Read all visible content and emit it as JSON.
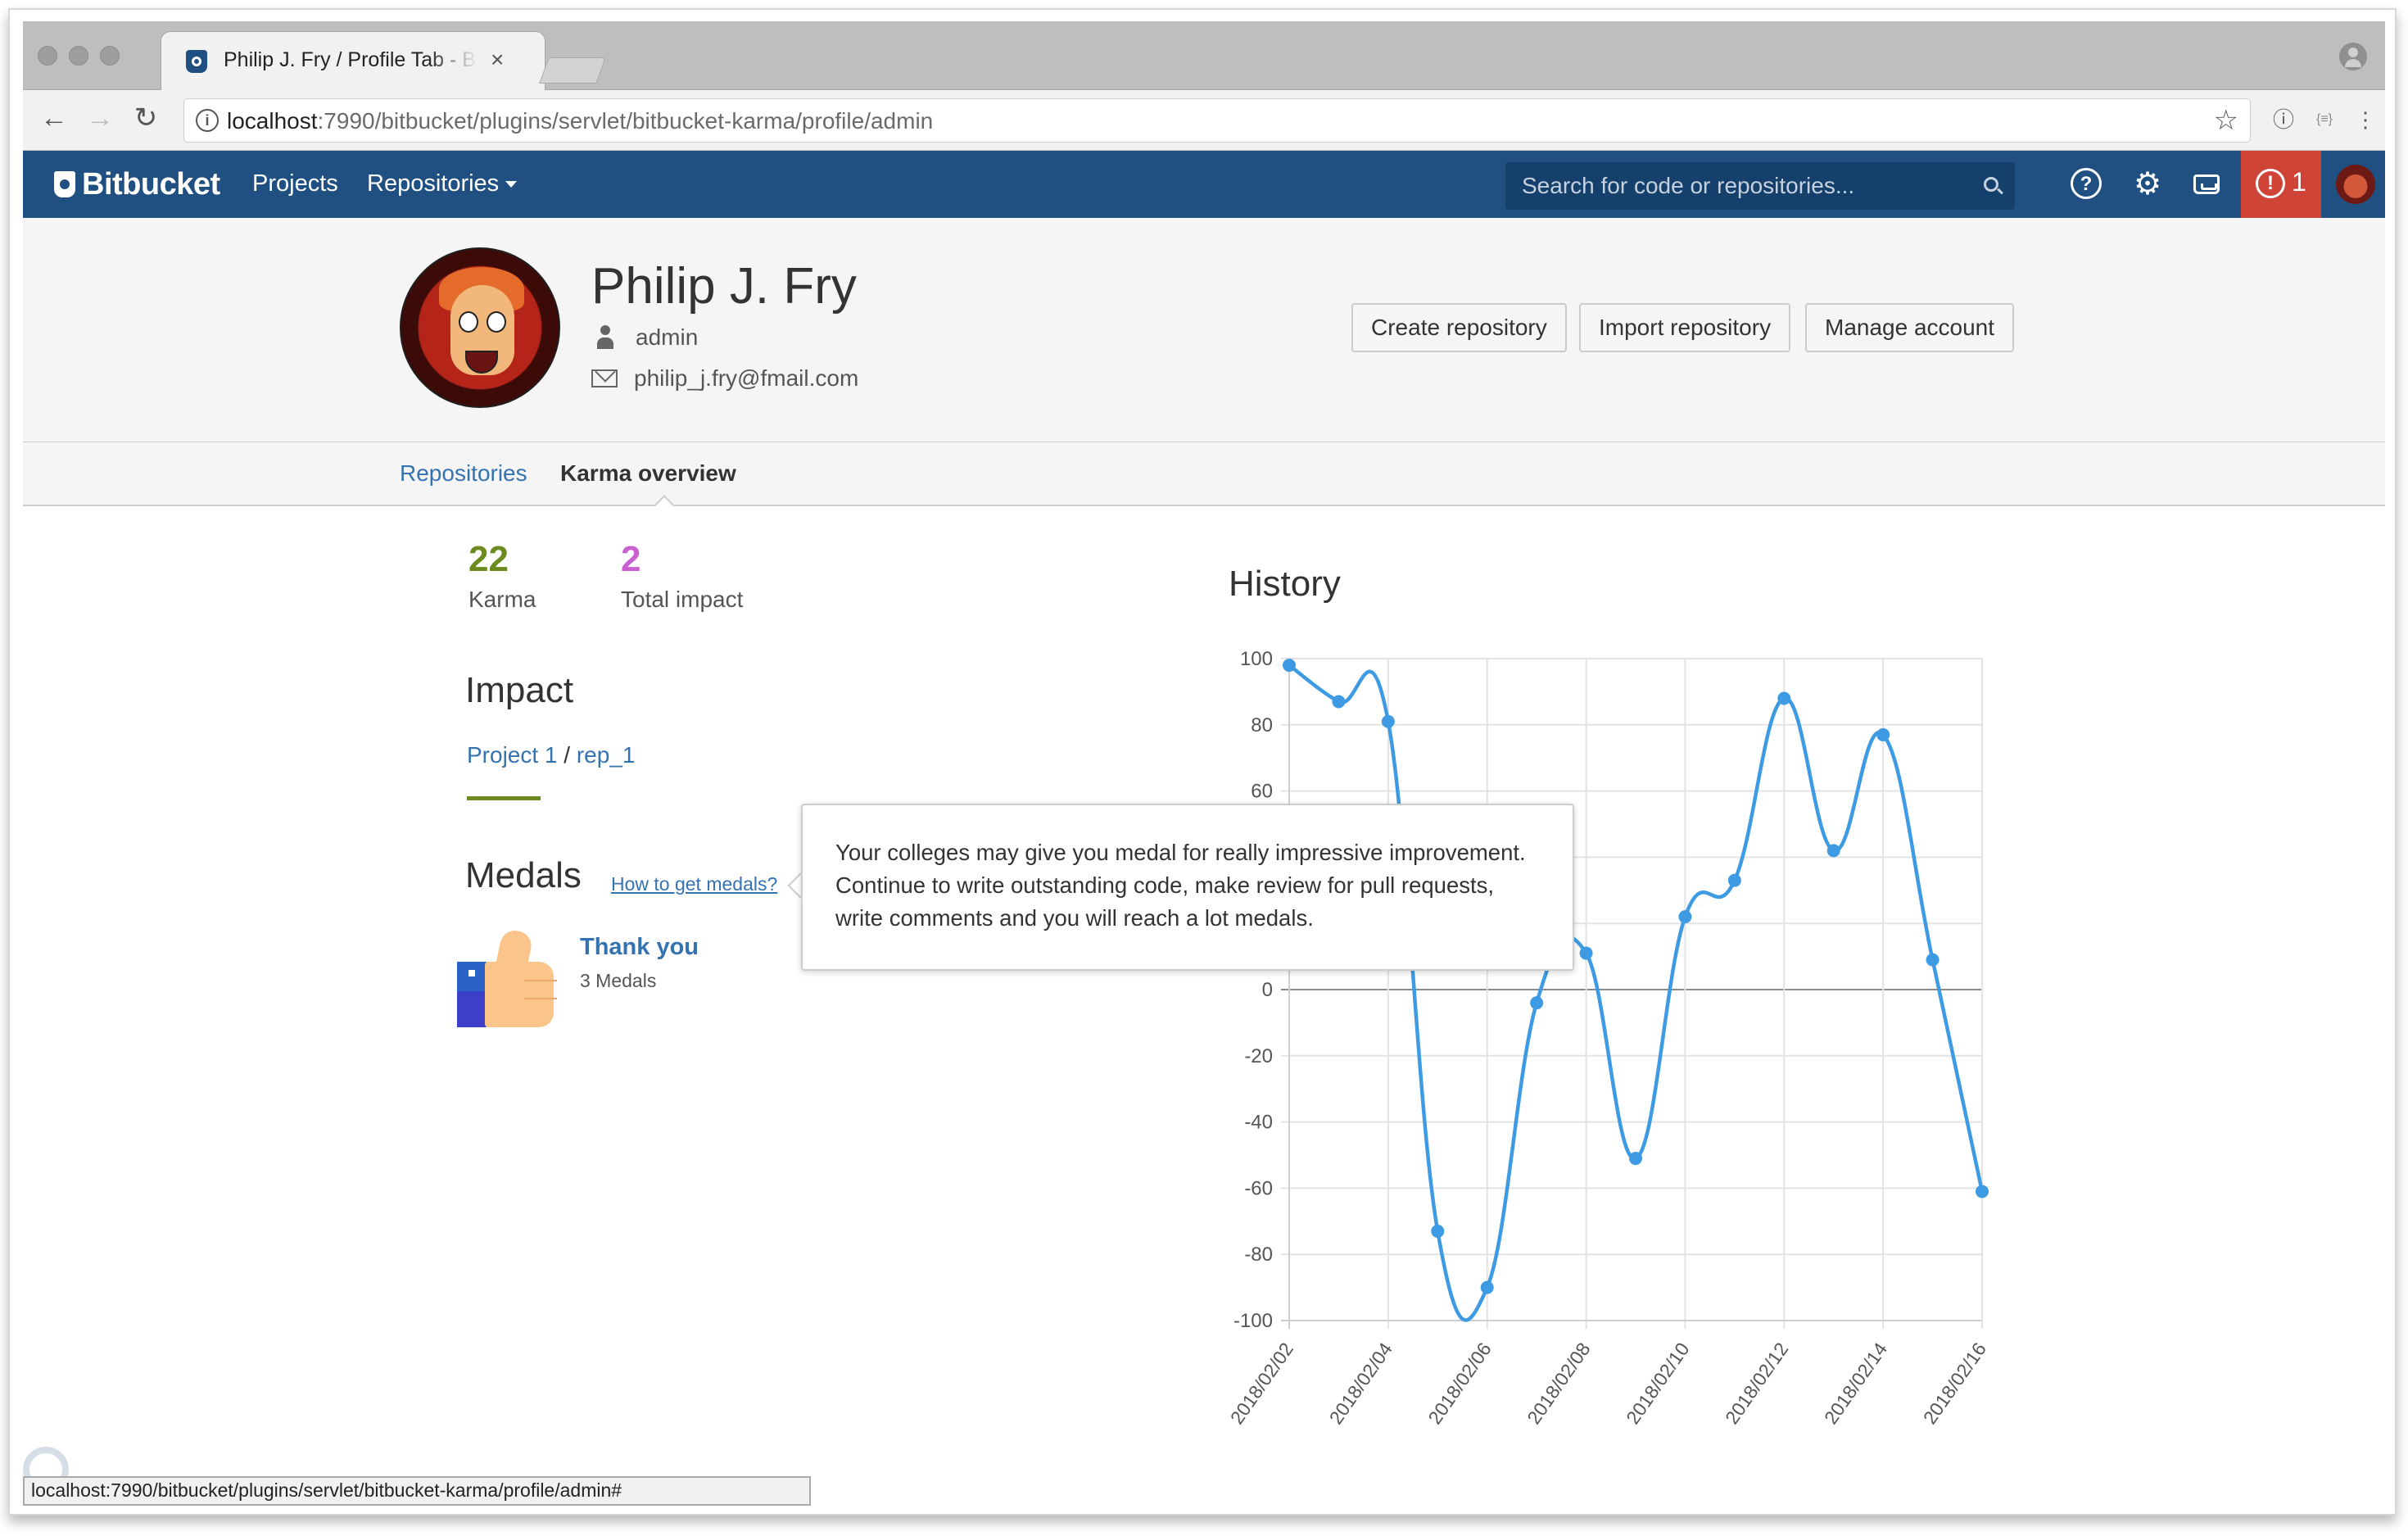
{
  "browser": {
    "tab_title": "Philip J. Fry / Profile Tab - Bitbucket",
    "tab_close": "×",
    "url_host": "localhost",
    "url_path": ":7990/bitbucket/plugins/servlet/bitbucket-karma/profile/admin",
    "nav": {
      "back": "←",
      "forward": "→",
      "reload": "↻",
      "star": "☆",
      "ext1": "ⓘ",
      "ext2": "{≡}",
      "menu": "⋮"
    },
    "status_url": "localhost:7990/bitbucket/plugins/servlet/bitbucket-karma/profile/admin#"
  },
  "header": {
    "logo": "Bitbucket",
    "nav": [
      {
        "label": "Projects"
      },
      {
        "label": "Repositories"
      }
    ],
    "search_placeholder": "Search for code or repositories...",
    "help_glyph": "?",
    "settings_glyph": "⚙",
    "alert_glyph": "!",
    "alert_count": "1",
    "colors": {
      "bar": "#205081",
      "alert": "#d04437"
    }
  },
  "profile": {
    "name": "Philip J. Fry",
    "username": "admin",
    "email": "philip_j.fry@fmail.com",
    "buttons": [
      {
        "label": "Create repository"
      },
      {
        "label": "Import repository"
      },
      {
        "label": "Manage account"
      }
    ]
  },
  "tabs": [
    {
      "label": "Repositories"
    },
    {
      "label": "Karma overview"
    }
  ],
  "stats": {
    "karma": {
      "value": "22",
      "label": "Karma",
      "color": "#6c8b1f"
    },
    "impact": {
      "value": "2",
      "label": "Total impact",
      "color": "#c95fd1"
    }
  },
  "impact": {
    "title": "Impact",
    "project": "Project 1",
    "separator": "/",
    "repo": "rep_1"
  },
  "medals": {
    "title": "Medals",
    "how_link": "How to get medals?",
    "items": [
      {
        "name": "Thank you",
        "count": "3 Medals"
      }
    ],
    "tooltip": "Your colleges may give you medal for really impressive improvement. Continue to write outstanding code, make review for pull requests, write comments and you will reach a lot medals."
  },
  "history": {
    "title": "History"
  },
  "chart_data": {
    "type": "line",
    "title": "History",
    "xlabel": "",
    "ylabel": "",
    "ylim": [
      -100,
      100
    ],
    "y_ticks": [
      100,
      80,
      60,
      40,
      20,
      0,
      -20,
      -40,
      -60,
      -80,
      -100
    ],
    "x": [
      "2018/02/02",
      "2018/02/03",
      "2018/02/04",
      "2018/02/05",
      "2018/02/06",
      "2018/02/07",
      "2018/02/08",
      "2018/02/09",
      "2018/02/10",
      "2018/02/11",
      "2018/02/12",
      "2018/02/13",
      "2018/02/14",
      "2018/02/15",
      "2018/02/16"
    ],
    "x_tick_labels": [
      "2018/02/02",
      "2018/02/04",
      "2018/02/06",
      "2018/02/08",
      "2018/02/10",
      "2018/02/12",
      "2018/02/14",
      "2018/02/16"
    ],
    "series": [
      {
        "values": [
          98,
          87,
          81,
          -73,
          -90,
          -4,
          11,
          -51,
          22,
          33,
          88,
          42,
          77,
          9,
          -61
        ],
        "color": "#3e9be3"
      }
    ],
    "grid": true
  }
}
